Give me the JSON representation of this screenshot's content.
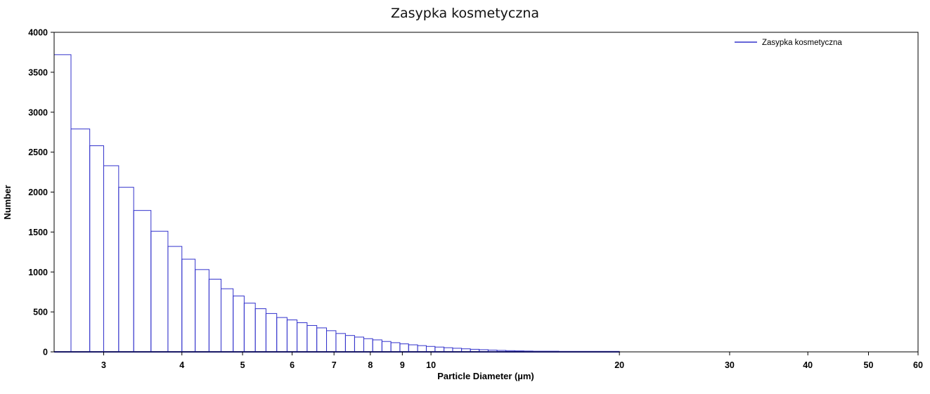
{
  "chart_data": {
    "type": "bar",
    "title": "Zasypka kosmetyczna",
    "xlabel": "Particle Diameter (µm)",
    "ylabel": "Number",
    "x_scale": "log",
    "xlim": [
      2.5,
      60
    ],
    "ylim": [
      0,
      4000
    ],
    "grid": false,
    "legend_position": "top-right",
    "x_ticks": [
      3,
      4,
      5,
      6,
      7,
      8,
      9,
      10,
      20,
      30,
      40,
      50,
      60
    ],
    "y_ticks": [
      0,
      500,
      1000,
      1500,
      2000,
      2500,
      3000,
      3500,
      4000
    ],
    "series": [
      {
        "name": "Zasypka kosmetyczna",
        "color": "#3333cc",
        "bin_edges": [
          2.5,
          2.66,
          2.85,
          3.0,
          3.17,
          3.35,
          3.57,
          3.8,
          4.0,
          4.2,
          4.42,
          4.62,
          4.83,
          5.03,
          5.24,
          5.45,
          5.67,
          5.89,
          6.11,
          6.34,
          6.57,
          6.81,
          7.05,
          7.3,
          7.55,
          7.81,
          8.07,
          8.35,
          8.63,
          8.92,
          9.21,
          9.52,
          9.83,
          10.15,
          10.49,
          10.83,
          11.19,
          11.56,
          11.94,
          12.34,
          12.75,
          13.17,
          13.61,
          14.07,
          14.55,
          16.0,
          20.0
        ],
        "values": [
          3720,
          2790,
          2580,
          2330,
          2060,
          1770,
          1510,
          1320,
          1160,
          1030,
          910,
          790,
          700,
          610,
          540,
          480,
          430,
          400,
          365,
          330,
          300,
          265,
          230,
          205,
          185,
          165,
          150,
          130,
          115,
          100,
          88,
          78,
          68,
          60,
          52,
          45,
          38,
          32,
          27,
          22,
          18,
          15,
          12,
          10,
          8,
          6
        ]
      }
    ]
  }
}
